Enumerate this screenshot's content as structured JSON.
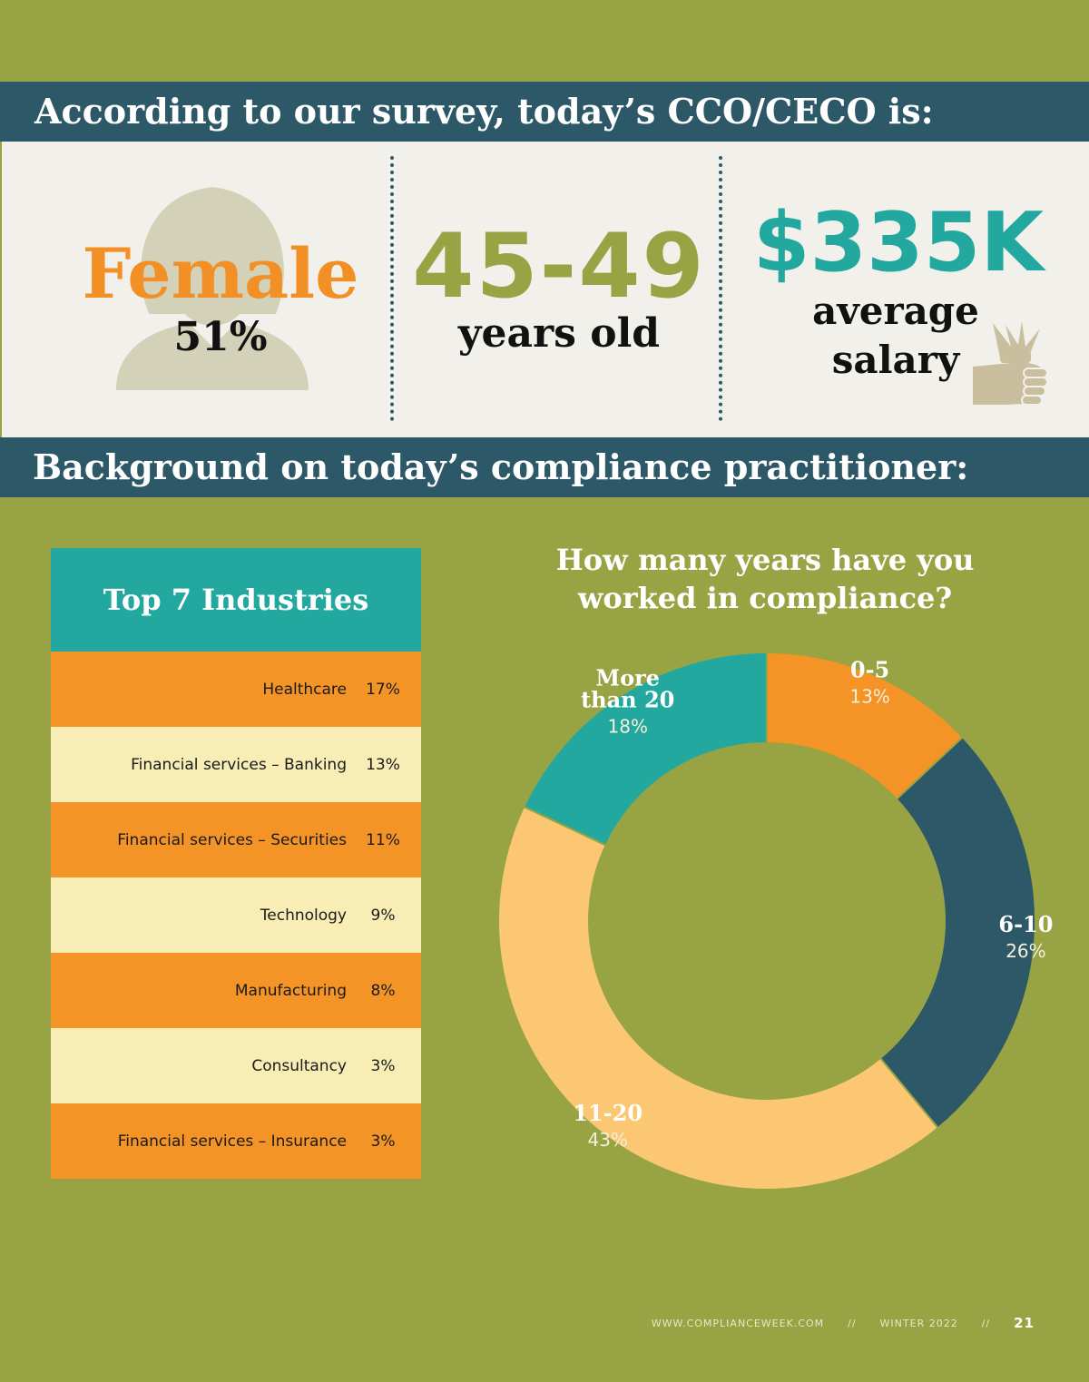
{
  "banner1": "According to our survey, today’s CCO/CECO is:",
  "banner2": "Background on today’s compliance practitioner:",
  "profile": {
    "gender_label": "Female",
    "gender_pct": "51%",
    "age_label": "45-49",
    "age_sub": "years old",
    "salary_value": "$335K",
    "salary_sub_line1": "average",
    "salary_sub_line2": "salary",
    "icons": [
      "woman-silhouette-icon",
      "hand-holding-money-icon"
    ]
  },
  "industries": {
    "title": "Top 7 Industries",
    "rows": [
      {
        "label": "Healthcare",
        "value": "17%"
      },
      {
        "label": "Financial services – Banking",
        "value": "13%"
      },
      {
        "label": "Financial services – Securities",
        "value": "11%"
      },
      {
        "label": "Technology",
        "value": "9%"
      },
      {
        "label": "Manufacturing",
        "value": "8%"
      },
      {
        "label": "Consultancy",
        "value": "3%"
      },
      {
        "label": "Financial services – Insurance",
        "value": "3%"
      }
    ]
  },
  "chart_data": [
    {
      "type": "table",
      "title": "Top 7 Industries",
      "categories": [
        "Healthcare",
        "Financial services – Banking",
        "Financial services – Securities",
        "Technology",
        "Manufacturing",
        "Consultancy",
        "Financial services – Insurance"
      ],
      "values": [
        17,
        13,
        11,
        9,
        8,
        3,
        3
      ]
    },
    {
      "type": "pie",
      "title": "How many years have you worked in compliance?",
      "slices": [
        {
          "label": "0-5",
          "value": 13,
          "display": "13%",
          "color": "#f49427"
        },
        {
          "label": "6-10",
          "value": 26,
          "display": "26%",
          "color": "#2d5868"
        },
        {
          "label": "11-20",
          "value": 43,
          "display": "43%",
          "color": "#fbc773"
        },
        {
          "label": "More than 20",
          "value": 18,
          "display": "18%",
          "color": "#23a89f"
        }
      ]
    }
  ],
  "footer": {
    "site": "WWW.COMPLIANCEWEEK.COM",
    "sep1": "//",
    "issue": "WINTER 2022",
    "sep2": "//",
    "page": "21"
  },
  "colors": {
    "background": "#98a444",
    "banner": "#2d5868",
    "teal": "#23a89f",
    "orange": "#f49427",
    "cream": "#f8edb4",
    "panel": "#f2f0ea"
  }
}
